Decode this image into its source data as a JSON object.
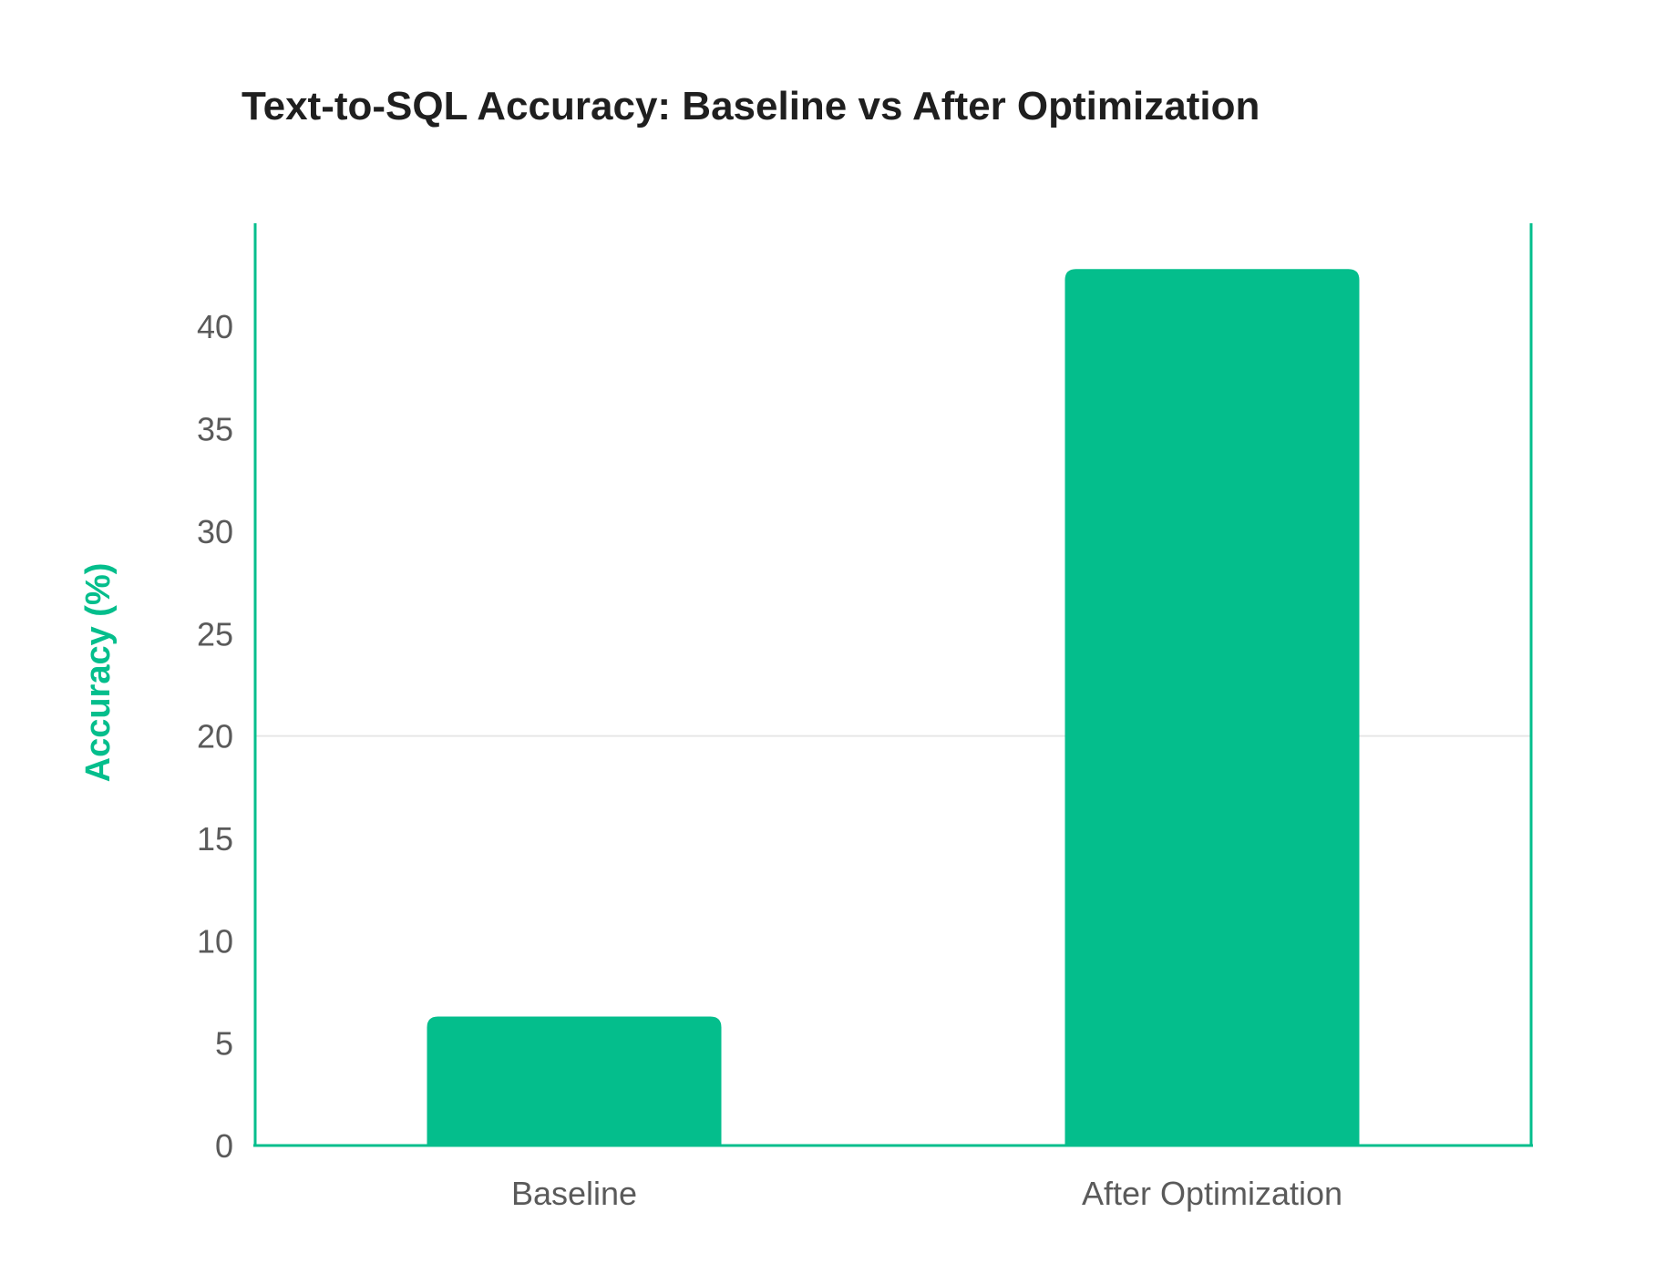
{
  "chart_data": {
    "type": "bar",
    "title": "Text-to-SQL Accuracy: Baseline vs After Optimization",
    "xlabel": "",
    "ylabel": "Accuracy (%)",
    "categories": [
      "Baseline",
      "After Optimization"
    ],
    "values": [
      6.3,
      42.8
    ],
    "ylim": [
      0,
      45
    ],
    "yticks": [
      0,
      5,
      10,
      15,
      20,
      25,
      30,
      35,
      40
    ],
    "grid": "single line at 20",
    "gridline_value": 20,
    "legend": "none"
  },
  "colors": {
    "bar": "#04be8c",
    "axis": "#04be8c",
    "ylabel": "#04be8c",
    "tick_label": "#5a5a5a",
    "title": "#1f1f1f",
    "grid": "#e6e6e6"
  }
}
